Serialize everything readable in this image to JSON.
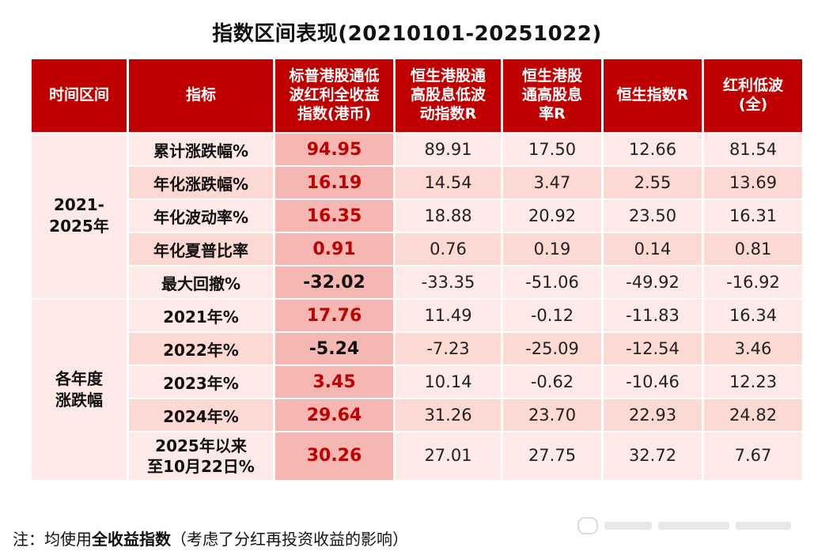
{
  "title": "指数区间表现(20210101-20251022)",
  "headers": [
    "时间区间",
    "指标",
    "标普港股通低波红利全收益指数(港币)",
    "恒生港股通高股息低波动指数R",
    "恒生港股通高股息率R",
    "恒生指数R",
    "红利低波(全)"
  ],
  "header_lines": [
    [
      "时间区间"
    ],
    [
      "指标"
    ],
    [
      "标普港股通低",
      "波红利全收益",
      "指数(港币)"
    ],
    [
      "恒生港股通",
      "高股息低波",
      "动指数R"
    ],
    [
      "恒生港股",
      "通高股息",
      "率R"
    ],
    [
      "恒生指数R"
    ],
    [
      "红利低波",
      "(全)"
    ]
  ],
  "groups": [
    {
      "label_lines": [
        "2021-",
        "2025年"
      ],
      "rows": [
        {
          "label": "累计涨跌幅%",
          "values": [
            "94.95",
            "89.91",
            "17.50",
            "12.66",
            "81.54"
          ]
        },
        {
          "label": "年化涨跌幅%",
          "values": [
            "16.19",
            "14.54",
            "3.47",
            "2.55",
            "13.69"
          ]
        },
        {
          "label": "年化波动率%",
          "values": [
            "16.35",
            "18.88",
            "20.92",
            "23.50",
            "16.31"
          ]
        },
        {
          "label": "年化夏普比率",
          "values": [
            "0.91",
            "0.76",
            "0.19",
            "0.14",
            "0.81"
          ]
        },
        {
          "label": "最大回撤%",
          "values": [
            "-32.02",
            "-33.35",
            "-51.06",
            "-49.92",
            "-16.92"
          ]
        }
      ]
    },
    {
      "label_lines": [
        "各年度",
        "涨跌幅"
      ],
      "rows": [
        {
          "label": "2021年%",
          "values": [
            "17.76",
            "11.49",
            "-0.12",
            "-11.83",
            "16.34"
          ]
        },
        {
          "label": "2022年%",
          "values": [
            "-5.24",
            "-7.23",
            "-25.09",
            "-12.54",
            "3.46"
          ]
        },
        {
          "label": "2023年%",
          "values": [
            "3.45",
            "10.14",
            "-0.62",
            "-10.46",
            "12.23"
          ]
        },
        {
          "label": "2024年%",
          "values": [
            "29.64",
            "31.26",
            "23.70",
            "22.93",
            "24.82"
          ]
        },
        {
          "label_lines": [
            "2025年以来",
            "至10月22日%"
          ],
          "values": [
            "30.26",
            "27.01",
            "27.75",
            "32.72",
            "7.67"
          ]
        }
      ]
    }
  ],
  "note": {
    "prefix": "注：均使用",
    "bold": "全收益指数",
    "suffix": "（考虑了分红再投资收益的影响）"
  },
  "colors": {
    "header_bg": "#c00000",
    "highlight_bg": "#f6b6b2",
    "row_light": "#fde9e5",
    "row_dark": "#fcd9d2",
    "accent_text": "#c00000"
  }
}
